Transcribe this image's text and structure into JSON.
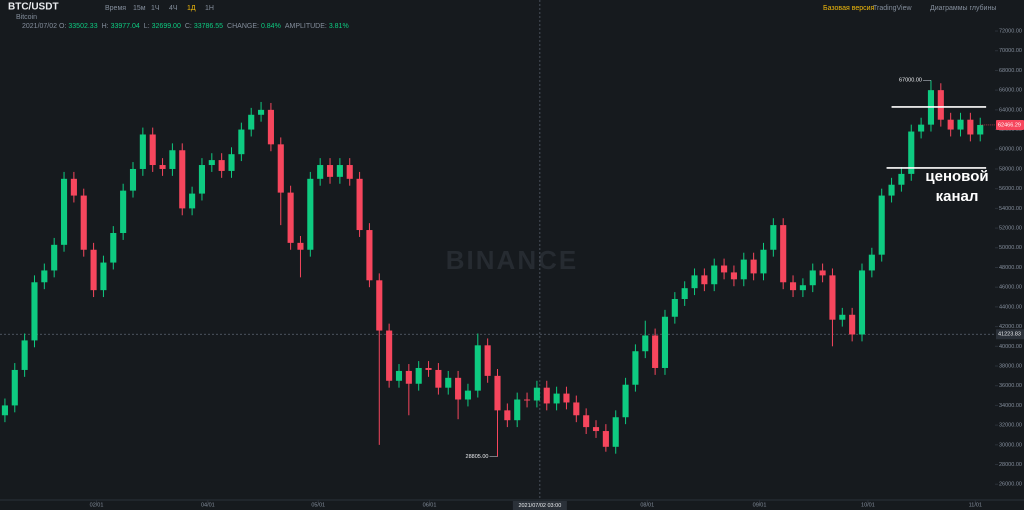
{
  "chart_data": {
    "type": "candlestick",
    "title": "BTC/USDT",
    "subtitle": "Bitcoin",
    "intervals": [
      "Время",
      "15м",
      "1Ч",
      "4Ч",
      "1Д",
      "1Н"
    ],
    "active_interval": 4,
    "views": [
      "Базовая версия",
      "TradingView",
      "Диаграммы глубины"
    ],
    "info": {
      "date": "2021/07/02",
      "fields": [
        {
          "label": "O:",
          "value": "33502.33"
        },
        {
          "label": "H:",
          "value": "33977.04"
        },
        {
          "label": "L:",
          "value": "32699.00"
        },
        {
          "label": "C:",
          "value": "33786.55"
        },
        {
          "label": "CHANGE:",
          "value": "0.84%"
        },
        {
          "label": "AMPLITUDE:",
          "value": "3.81%"
        }
      ]
    },
    "watermark": "BINANCE",
    "up_color": "#0ecb81",
    "down_color": "#f6465d",
    "open": [
      33000,
      34000,
      37600,
      40600,
      46500,
      47700,
      50300,
      57000,
      55300,
      49800,
      45700,
      48500,
      51500,
      55800,
      58000,
      61500,
      58400,
      58000,
      59900,
      54000,
      55500,
      58400,
      58900,
      57800,
      59500,
      62000,
      63500,
      64000,
      60500,
      55600,
      50500,
      49800,
      57000,
      58400,
      57200,
      58400,
      57000,
      51800,
      46700,
      41600,
      36500,
      37500,
      36200,
      37800,
      37600,
      35800,
      36800,
      34600,
      35500,
      40100,
      37000,
      33500,
      32500,
      34600,
      34500,
      35800,
      34200,
      35200,
      34300,
      33000,
      31800,
      31400,
      29800,
      32800,
      36100,
      39500,
      41100,
      37800,
      43000,
      44800,
      45900,
      47200,
      46300,
      48200,
      47500,
      46800,
      48800,
      47400,
      49800,
      52300,
      46500,
      45700,
      46200,
      47700,
      47200,
      42700,
      43200,
      41200,
      47700,
      49300,
      55300,
      56400,
      57500,
      61800,
      62500,
      66000,
      63000,
      62000,
      63000,
      61500
    ],
    "high": [
      34700,
      38300,
      41300,
      47200,
      48400,
      51000,
      57700,
      57700,
      56000,
      50500,
      49200,
      52200,
      56500,
      58700,
      62200,
      62200,
      59100,
      60600,
      60600,
      56200,
      59100,
      59600,
      59600,
      60200,
      62700,
      64200,
      64800,
      64700,
      61200,
      56300,
      51200,
      57700,
      59100,
      59100,
      59100,
      59100,
      57700,
      52500,
      47400,
      42300,
      38200,
      38200,
      38500,
      38500,
      38300,
      37500,
      37500,
      36200,
      41300,
      40800,
      37700,
      34200,
      35300,
      35300,
      36500,
      36500,
      35900,
      35900,
      35000,
      33700,
      32500,
      32100,
      33500,
      36800,
      40200,
      42600,
      41800,
      43700,
      45500,
      46600,
      47900,
      47900,
      48900,
      48900,
      48200,
      49500,
      49500,
      50500,
      53000,
      53000,
      47200,
      46900,
      48400,
      48400,
      47900,
      43900,
      43900,
      48400,
      50000,
      56000,
      57100,
      58200,
      62500,
      63200,
      67000,
      66700,
      63700,
      63700,
      63700,
      63200
    ],
    "low": [
      32300,
      33300,
      36900,
      39900,
      45800,
      47000,
      49600,
      54600,
      49100,
      45000,
      45000,
      47800,
      50800,
      55100,
      57300,
      57700,
      57300,
      57300,
      53300,
      53300,
      54800,
      57700,
      57100,
      57100,
      58800,
      61300,
      62800,
      59800,
      52300,
      49800,
      47000,
      49100,
      56300,
      56500,
      56500,
      56300,
      51100,
      46000,
      30000,
      35800,
      35800,
      33000,
      35500,
      36900,
      35100,
      35100,
      32600,
      33900,
      34800,
      36300,
      28805,
      31800,
      31800,
      33800,
      33800,
      33500,
      33500,
      33600,
      32300,
      31100,
      30700,
      29300,
      29100,
      32100,
      35400,
      38800,
      37100,
      37100,
      42300,
      44100,
      45200,
      45600,
      45600,
      46800,
      46100,
      46100,
      46700,
      46700,
      49100,
      45800,
      45000,
      45000,
      45500,
      46500,
      40000,
      42000,
      40500,
      40500,
      47000,
      48600,
      54600,
      55700,
      56800,
      61100,
      61800,
      62300,
      61300,
      61300,
      60800,
      60800
    ],
    "close": [
      34000,
      37600,
      40600,
      46500,
      47700,
      50300,
      57000,
      55300,
      49800,
      45700,
      48500,
      51500,
      55800,
      58000,
      61500,
      58400,
      58000,
      59900,
      54000,
      55500,
      58400,
      58900,
      57800,
      59500,
      62000,
      63500,
      64000,
      60500,
      55600,
      50500,
      49800,
      57000,
      58400,
      57200,
      58400,
      57000,
      51800,
      46700,
      41600,
      36500,
      37500,
      36200,
      37800,
      37600,
      35800,
      36800,
      34600,
      35500,
      40100,
      37000,
      33500,
      32500,
      34600,
      34500,
      35800,
      34200,
      35200,
      34300,
      33000,
      31800,
      31400,
      29800,
      32800,
      36100,
      39500,
      41100,
      37800,
      43000,
      44800,
      45900,
      47200,
      46300,
      48200,
      47500,
      46800,
      48800,
      47400,
      49800,
      52300,
      46500,
      45700,
      46200,
      47700,
      47200,
      42700,
      43200,
      41200,
      47700,
      49300,
      55300,
      56400,
      57500,
      61800,
      62500,
      66000,
      63000,
      62000,
      63000,
      61500,
      62466.29
    ],
    "xlim": [
      -0.5,
      100.5
    ],
    "xticks": [
      {
        "value": 9.3,
        "label": "02/01"
      },
      {
        "value": 20.6,
        "label": "04/01"
      },
      {
        "value": 31.8,
        "label": "05/01"
      },
      {
        "value": 43.1,
        "label": "06/01"
      },
      {
        "value": 65.2,
        "label": "08/01"
      },
      {
        "value": 76.6,
        "label": "09/01"
      },
      {
        "value": 87.6,
        "label": "10/01"
      },
      {
        "value": 98.5,
        "label": "11/01"
      }
    ],
    "ylim": [
      24400,
      75150
    ],
    "yticks": [
      {
        "value": 26000,
        "label": "26000.00"
      },
      {
        "value": 28000,
        "label": "28000.00"
      },
      {
        "value": 30000,
        "label": "30000.00"
      },
      {
        "value": 32000,
        "label": "32000.00"
      },
      {
        "value": 34000,
        "label": "34000.00"
      },
      {
        "value": 36000,
        "label": "36000.00"
      },
      {
        "value": 38000,
        "label": "38000.00"
      },
      {
        "value": 40000,
        "label": "40000.00"
      },
      {
        "value": 42000,
        "label": "42000.00"
      },
      {
        "value": 44000,
        "label": "44000.00"
      },
      {
        "value": 46000,
        "label": "46000.00"
      },
      {
        "value": 48000,
        "label": "48000.00"
      },
      {
        "value": 50000,
        "label": "50000.00"
      },
      {
        "value": 52000,
        "label": "52000.00"
      },
      {
        "value": 54000,
        "label": "54000.00"
      },
      {
        "value": 56000,
        "label": "56000.00"
      },
      {
        "value": 58000,
        "label": "58000.00"
      },
      {
        "value": 60000,
        "label": "60000.00"
      },
      {
        "value": 62000,
        "label": "62000.00"
      },
      {
        "value": 64000,
        "label": "64000.00"
      },
      {
        "value": 66000,
        "label": "66000.00"
      },
      {
        "value": 68000,
        "label": "68000.00"
      },
      {
        "value": 70000,
        "label": "70000.00"
      },
      {
        "value": 72000,
        "label": "72000.00"
      }
    ],
    "high_marker": {
      "index": 94,
      "value": 67000,
      "label": "67000.00"
    },
    "low_marker": {
      "index": 50,
      "value": 28805,
      "label": "28805.00"
    },
    "last_price": 62466.29,
    "crosshair": {
      "index": 54.3,
      "label": "2021/07/02 03:00",
      "price": 41223.83
    },
    "channel": {
      "upper": 64300,
      "lower": 58100,
      "from_index": 90,
      "to_index": 99.6
    },
    "annotation": [
      "ценовой",
      "канал"
    ]
  }
}
